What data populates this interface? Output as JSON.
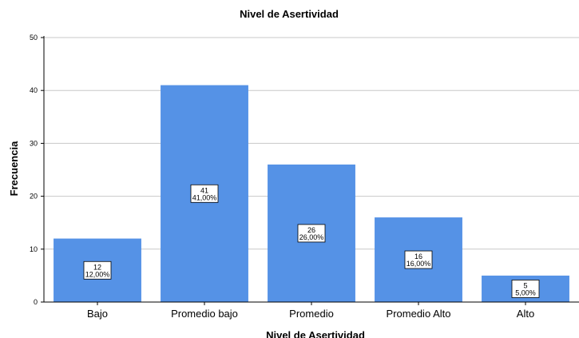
{
  "chart_data": {
    "type": "bar",
    "title": "Nivel de Asertividad",
    "xlabel": "Nivel de Asertividad",
    "ylabel": "Frecuencia",
    "categories": [
      "Bajo",
      "Promedio bajo",
      "Promedio",
      "Promedio Alto",
      "Alto"
    ],
    "values": [
      12,
      41,
      26,
      16,
      5
    ],
    "percent_labels": [
      "12,00%",
      "41,00%",
      "26,00%",
      "16,00%",
      "5,00%"
    ],
    "ylim": [
      0,
      50
    ],
    "yticks": [
      0,
      10,
      20,
      30,
      40,
      50
    ],
    "grid": true,
    "bar_color": "#5592e6"
  }
}
